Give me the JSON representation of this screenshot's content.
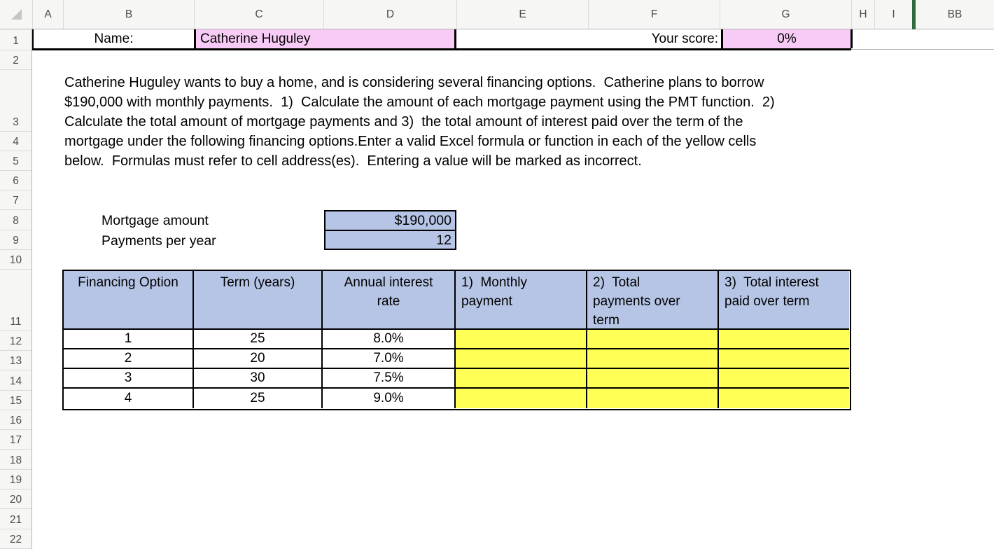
{
  "columns": [
    "A",
    "B",
    "C",
    "D",
    "E",
    "F",
    "G",
    "H",
    "I",
    "BB"
  ],
  "rows": [
    "1",
    "2",
    "3",
    "4",
    "5",
    "6",
    "7",
    "8",
    "9",
    "10",
    "11",
    "12",
    "13",
    "14",
    "15",
    "16",
    "17",
    "18",
    "19",
    "20",
    "21",
    "22"
  ],
  "header_row": {
    "name_label": "Name:",
    "name_value": "Catherine Huguley",
    "score_label": "Your score:",
    "score_value": "0%"
  },
  "instructions": {
    "lines": [
      "Catherine Huguley wants to buy a home, and is considering several financing options.  Catherine plans to borrow",
      "$190,000 with monthly payments.  1)  Calculate the amount of each mortgage payment using the PMT function.  2)",
      "Calculate the total amount of mortgage payments and 3)  the total amount of interest paid over the term of the",
      "mortgage under the following financing options.Enter a valid Excel formula or function in each of the yellow cells",
      "below.  Formulas must refer to cell address(es).  Entering a value will be marked as incorrect."
    ]
  },
  "parameters": {
    "mortgage_label": "Mortgage amount",
    "mortgage_value": "$190,000",
    "payments_label": "Payments per year",
    "payments_value": "12"
  },
  "financing_table": {
    "headers": [
      "Financing Option",
      "Term (years)",
      "Annual interest\nrate",
      "1)  Monthly\npayment",
      "2)  Total\npayments over\nterm",
      "3)  Total interest\npaid over term"
    ],
    "rows": [
      {
        "option": "1",
        "term": "25",
        "rate": "8.0%",
        "monthly": "",
        "total": "",
        "interest": ""
      },
      {
        "option": "2",
        "term": "20",
        "rate": "7.0%",
        "monthly": "",
        "total": "",
        "interest": ""
      },
      {
        "option": "3",
        "term": "30",
        "rate": "7.5%",
        "monthly": "",
        "total": "",
        "interest": ""
      },
      {
        "option": "4",
        "term": "25",
        "rate": "9.0%",
        "monthly": "",
        "total": "",
        "interest": ""
      }
    ]
  },
  "colors": {
    "pink": "#f8cbf6",
    "blue": "#b6c5e6",
    "yellow": "#ffff55",
    "hidden_columns_divider_green": "#2e6b3d"
  }
}
